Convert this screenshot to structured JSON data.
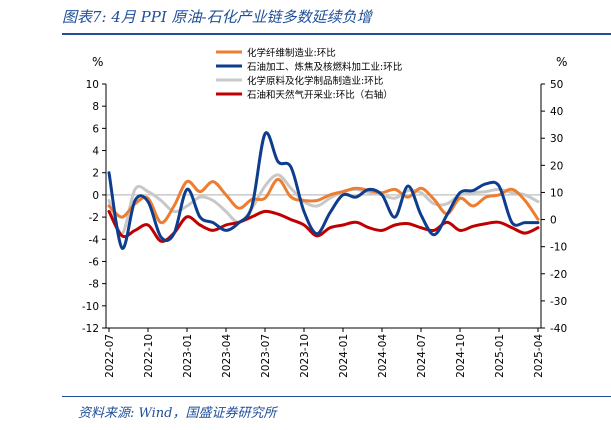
{
  "title": "图表7:  4月 PPI 原油-石化产业链多数延续负增",
  "source": "资料来源:  Wind，国盛证券研究所",
  "colors": {
    "fiber": "#ED7D31",
    "refining": "#0E3D8E",
    "chemical": "#C8C8C8",
    "oilgas": "#C00000",
    "axis": "#000000",
    "zero": "#BFBFBF",
    "brand": "#1F4E9A"
  },
  "chart_data": {
    "type": "line",
    "left_axis": {
      "unit": "%",
      "ylim": [
        -12,
        10
      ],
      "ticks": [
        10,
        8,
        6,
        4,
        2,
        0,
        -2,
        -4,
        -6,
        -8,
        -10,
        -12
      ]
    },
    "right_axis": {
      "unit": "%",
      "ylim": [
        -40,
        50
      ],
      "ticks": [
        50,
        40,
        30,
        20,
        10,
        0,
        -10,
        -20,
        -30,
        -40
      ]
    },
    "x_tick_labels": [
      "2022-07",
      "2022-10",
      "2023-01",
      "2023-04",
      "2023-07",
      "2023-10",
      "2024-01",
      "2024-04",
      "2024-07",
      "2024-10",
      "2025-01",
      "2025-04"
    ],
    "months": [
      "2022-07",
      "2022-08",
      "2022-09",
      "2022-10",
      "2022-11",
      "2022-12",
      "2023-01",
      "2023-02",
      "2023-03",
      "2023-04",
      "2023-05",
      "2023-06",
      "2023-07",
      "2023-08",
      "2023-09",
      "2023-10",
      "2023-11",
      "2023-12",
      "2024-01",
      "2024-02",
      "2024-03",
      "2024-04",
      "2024-05",
      "2024-06",
      "2024-07",
      "2024-08",
      "2024-09",
      "2024-10",
      "2024-11",
      "2024-12",
      "2025-01",
      "2025-02",
      "2025-03",
      "2025-04"
    ],
    "series": [
      {
        "name": "化学纤维制造业:环比",
        "color": "#ED7D31",
        "axis": "left",
        "values": [
          -1.0,
          -2.0,
          -0.8,
          -0.3,
          -2.5,
          -1.0,
          1.2,
          0.3,
          1.2,
          0.0,
          -1.2,
          -0.4,
          -0.3,
          1.4,
          -0.2,
          -0.5,
          -0.5,
          0.0,
          0.3,
          0.6,
          0.4,
          0.2,
          0.5,
          -0.2,
          0.6,
          -0.4,
          -1.7,
          -0.3,
          -1.0,
          -0.2,
          0.0,
          0.5,
          -0.5,
          -2.2
        ]
      },
      {
        "name": "石油加工、炼焦及核燃料加工业:环比",
        "color": "#0E3D8E",
        "axis": "left",
        "values": [
          2.0,
          -4.8,
          -0.5,
          -0.6,
          -3.8,
          -3.5,
          0.5,
          -2.0,
          -2.5,
          -3.2,
          -2.5,
          -1.0,
          5.5,
          3.0,
          2.5,
          -1.5,
          -3.5,
          -1.6,
          0.0,
          -0.2,
          0.5,
          0.0,
          -2.0,
          0.8,
          -1.8,
          -3.6,
          -1.8,
          0.2,
          0.4,
          1.0,
          0.8,
          -2.5,
          -2.5,
          -2.5
        ]
      },
      {
        "name": "化学原料及化学制品制造业:环比",
        "color": "#C8C8C8",
        "axis": "left",
        "values": [
          -0.5,
          -3.5,
          0.5,
          0.3,
          -0.5,
          -1.5,
          -1.0,
          -0.2,
          -0.5,
          -1.5,
          -2.5,
          -1.2,
          0.8,
          1.8,
          0.6,
          -0.6,
          -1.0,
          -0.3,
          0.3,
          0.5,
          0.2,
          0.0,
          -0.3,
          0.4,
          0.2,
          -0.8,
          -0.8,
          0.0,
          0.2,
          0.3,
          0.5,
          0.2,
          0.0,
          -0.6
        ]
      },
      {
        "name": "石油和天然气开采业:环比（右轴）",
        "color": "#C00000",
        "axis": "right",
        "values": [
          3.0,
          -6.0,
          -4.0,
          -2.0,
          -8.0,
          -5.0,
          1.0,
          -2.0,
          -4.0,
          -2.0,
          -1.0,
          1.0,
          3.0,
          2.0,
          0.0,
          -2.0,
          -6.0,
          -3.0,
          -2.0,
          -1.0,
          -3.0,
          -4.0,
          -2.0,
          -1.5,
          -3.0,
          -4.0,
          -1.0,
          -4.0,
          -2.5,
          -1.5,
          -1.0,
          -3.0,
          -5.0,
          -3.0
        ]
      }
    ]
  }
}
